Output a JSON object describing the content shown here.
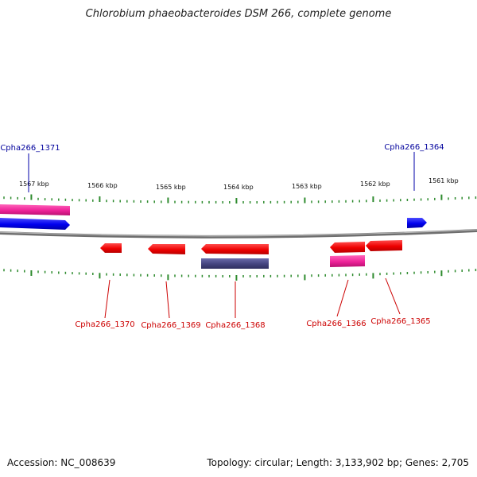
{
  "title": "Chlorobium phaeobacteroides DSM 266, complete genome",
  "accession": "Accession: NC_008639",
  "summary": "Topology: circular; Length: 3,133,902 bp; Genes: 2,705",
  "colors": {
    "backbone": "#888888",
    "ticks": "#2e8b2e",
    "forward_label": "#00009c",
    "reverse_label": "#cc0000",
    "red_gene": "#ff0000",
    "blue_gene": "#0000ff",
    "pink_feature": "#ee3399",
    "purple_feature": "#4a4a8a"
  },
  "scale_labels": [
    {
      "kbp": 1567,
      "text": "1567 kbp"
    },
    {
      "kbp": 1566,
      "text": "1566 kbp"
    },
    {
      "kbp": 1565,
      "text": "1565 kbp"
    },
    {
      "kbp": 1564,
      "text": "1564 kbp"
    },
    {
      "kbp": 1563,
      "text": "1563 kbp"
    },
    {
      "kbp": 1562,
      "text": "1562 kbp"
    },
    {
      "kbp": 1561,
      "text": "1561 kbp"
    }
  ],
  "gene_labels": [
    {
      "name": "Cpha266_1371",
      "strand": "forward"
    },
    {
      "name": "Cpha266_1364",
      "strand": "forward"
    },
    {
      "name": "Cpha266_1370",
      "strand": "reverse"
    },
    {
      "name": "Cpha266_1369",
      "strand": "reverse"
    },
    {
      "name": "Cpha266_1368",
      "strand": "reverse"
    },
    {
      "name": "Cpha266_1366",
      "strand": "reverse"
    },
    {
      "name": "Cpha266_1365",
      "strand": "reverse"
    }
  ]
}
